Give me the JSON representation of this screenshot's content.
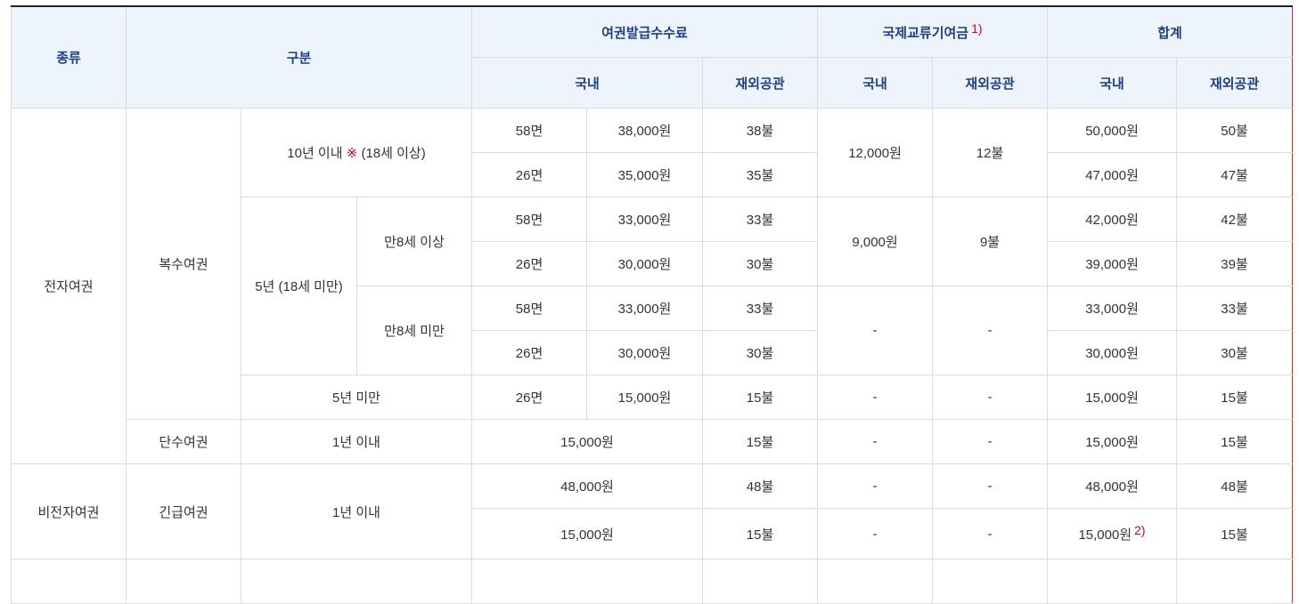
{
  "header": {
    "type": "종류",
    "category": "구분",
    "issue_fee": "여권발급수수료",
    "exchange_fee": "국제교류기여금",
    "exchange_note": "1)",
    "total": "합계",
    "domestic": "국내",
    "overseas": "재외공관"
  },
  "rows": {
    "electronic": "전자여권",
    "multiple": "복수여권",
    "within10": "10년 이내",
    "within10_mark": "※",
    "within10_age": "(18세 이상)",
    "five_year": "5년 (18세 미만)",
    "over8": "만8세 이상",
    "under8": "만8세 미만",
    "under5": "5년 미만",
    "single": "단수여권",
    "within1": "1년 이내",
    "non_electronic": "비전자여권",
    "emergency": "긴급여권",
    "emergency_period": "1년 이내",
    "p58": "58면",
    "p26": "26면",
    "v38000": "38,000원",
    "v35000": "35,000원",
    "v33000": "33,000원",
    "v30000": "30,000원",
    "v15000": "15,000원",
    "v48000": "48,000원",
    "d38": "38불",
    "d35": "35불",
    "d33": "33불",
    "d30": "30불",
    "d15": "15불",
    "d48": "48불",
    "ex12000": "12,000원",
    "ex12": "12불",
    "ex9000": "9,000원",
    "ex9": "9불",
    "dash": "-",
    "t50000": "50,000원",
    "t50": "50불",
    "t47000": "47,000원",
    "t47": "47불",
    "t42000": "42,000원",
    "t42": "42불",
    "t39000": "39,000원",
    "t39": "39불",
    "t33000": "33,000원",
    "t33": "33불",
    "t30000": "30,000원",
    "t30": "30불",
    "t15000": "15,000원",
    "t15": "15불",
    "t48000": "48,000원",
    "t48": "48불",
    "last_note": "2)"
  },
  "colors": {
    "header_bg": "#eef4fc",
    "header_text": "#1d3f8a",
    "note_red": "#e0001b",
    "highlight_border": "#d8232a"
  }
}
